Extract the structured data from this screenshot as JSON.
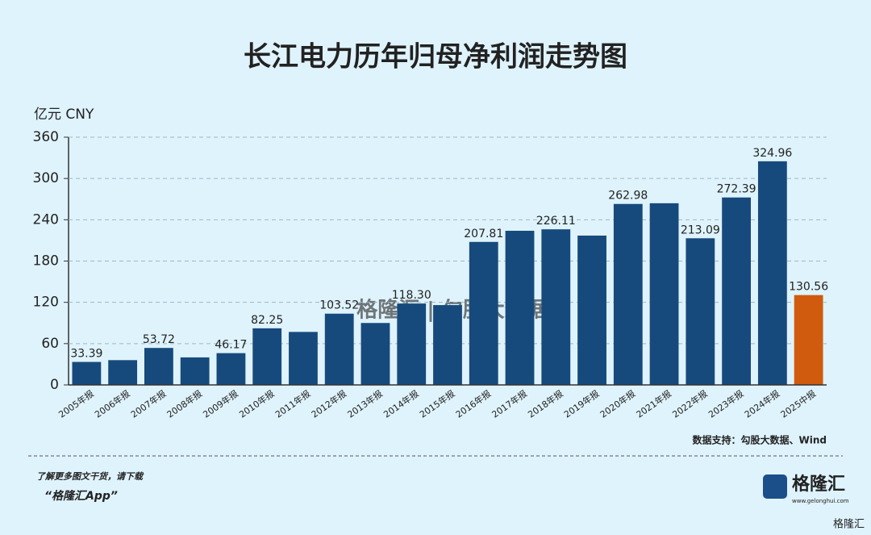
{
  "chart_data": {
    "type": "bar",
    "title": "长江电力历年归母净利润走势图",
    "y_label": "亿元  CNY",
    "categories": [
      "2005年报",
      "2006年报",
      "2007年报",
      "2008年报",
      "2009年报",
      "2010年报",
      "2011年报",
      "2012年报",
      "2013年报",
      "2014年报",
      "2015年报",
      "2016年报",
      "2017年报",
      "2018年报",
      "2019年报",
      "2020年报",
      "2021年报",
      "2022年报",
      "2023年报",
      "2024年报",
      "2025中报"
    ],
    "values": [
      33.39,
      36,
      53.72,
      40,
      46.17,
      82.25,
      77,
      103.52,
      90,
      118.3,
      116,
      207.81,
      224,
      226.11,
      217,
      262.98,
      264,
      213.09,
      272.39,
      324.96,
      130.56
    ],
    "value_labels": [
      "33.39",
      null,
      "53.72",
      null,
      "46.17",
      "82.25",
      null,
      "103.52",
      null,
      "118.30",
      null,
      "207.81",
      null,
      "226.11",
      null,
      "262.98",
      null,
      "213.09",
      "272.39",
      "324.96",
      "130.56"
    ],
    "colors": [
      "#174a7c",
      "#174a7c",
      "#174a7c",
      "#174a7c",
      "#174a7c",
      "#174a7c",
      "#174a7c",
      "#174a7c",
      "#174a7c",
      "#174a7c",
      "#174a7c",
      "#174a7c",
      "#174a7c",
      "#174a7c",
      "#174a7c",
      "#174a7c",
      "#174a7c",
      "#174a7c",
      "#174a7c",
      "#174a7c",
      "#d05a0e"
    ],
    "ylim": [
      0,
      360
    ],
    "yticks": [
      0,
      60,
      120,
      180,
      240,
      300,
      360
    ],
    "grid": true,
    "source": "数据支持：勾股大数据、Wind",
    "watermark": "格隆汇 | 勾股大数据",
    "footer_line1": "了解更多图文干货，请下载",
    "footer_line2": "“格隆汇App”",
    "logo": "格隆汇",
    "logo_url": "www.gelonghui.com",
    "corner_mark": "格隆汇"
  }
}
